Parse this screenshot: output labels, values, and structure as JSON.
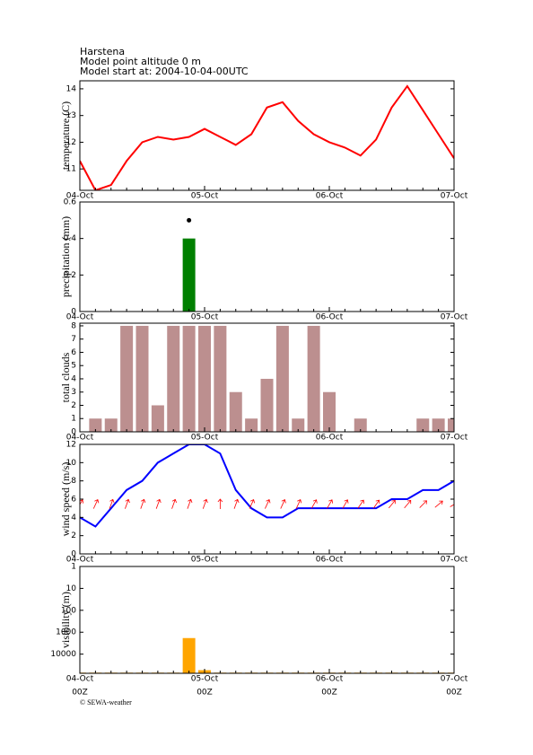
{
  "header": {
    "station": "Harstena",
    "altitude": "Model point altitude  0 m",
    "model_start": "Model start at: 2004-10-04-00UTC"
  },
  "footer": "© SEWA-weather",
  "chart_data": [
    {
      "type": "line",
      "y_label": "temperature (C)",
      "categories": [
        "04-Oct",
        null,
        null,
        null,
        null,
        null,
        null,
        null,
        "05-Oct",
        null,
        null,
        null,
        null,
        null,
        null,
        null,
        "06-Oct",
        null,
        null,
        null,
        null,
        null,
        null,
        null,
        "07-Oct"
      ],
      "values": [
        11.3,
        10.2,
        10.4,
        11.3,
        12.0,
        12.2,
        12.1,
        12.2,
        12.5,
        12.2,
        11.9,
        12.3,
        13.3,
        13.5,
        12.8,
        12.3,
        12.0,
        11.8,
        11.5,
        12.1,
        13.3,
        14.1,
        13.2,
        12.3,
        11.4
      ],
      "color": "#ff0000",
      "ylim": [
        10.2,
        14.3
      ],
      "yticks": [
        11,
        12,
        13,
        14
      ]
    },
    {
      "type": "bar",
      "y_label": "precipitation (mm)",
      "categories": [
        "04-Oct",
        null,
        null,
        null,
        null,
        null,
        null,
        null,
        "05-Oct",
        null,
        null,
        null,
        null,
        null,
        null,
        null,
        "06-Oct",
        null,
        null,
        null,
        null,
        null,
        null,
        null,
        "07-Oct"
      ],
      "values": [
        0,
        0,
        0,
        0,
        0,
        0,
        0,
        0.4,
        0,
        0,
        0,
        0,
        0,
        0,
        0,
        0,
        0,
        0,
        0,
        0,
        0,
        0,
        0,
        0,
        0
      ],
      "marker_values": [
        null,
        null,
        null,
        null,
        null,
        null,
        null,
        0.5,
        null,
        null,
        null,
        null,
        null,
        null,
        null,
        null,
        null,
        null,
        null,
        null,
        null,
        null,
        null,
        null,
        null
      ],
      "color": "#008000",
      "marker_color": "#000000",
      "ylim": [
        0,
        0.6
      ],
      "yticks": [
        0,
        0.2,
        0.4,
        0.6
      ]
    },
    {
      "type": "bar",
      "y_label": "total clouds",
      "categories": [
        "04-Oct",
        null,
        null,
        null,
        null,
        null,
        null,
        null,
        "05-Oct",
        null,
        null,
        null,
        null,
        null,
        null,
        null,
        "06-Oct",
        null,
        null,
        null,
        null,
        null,
        null,
        null,
        "07-Oct"
      ],
      "values": [
        0,
        1,
        1,
        8,
        8,
        2,
        8,
        8,
        8,
        8,
        3,
        1,
        4,
        8,
        1,
        8,
        3,
        0,
        1,
        0,
        0,
        0,
        1,
        1,
        1
      ],
      "color": "#bc8f8f",
      "ylim": [
        0,
        8.2
      ],
      "yticks": [
        0,
        1,
        2,
        3,
        4,
        5,
        6,
        7,
        8
      ]
    },
    {
      "type": "line",
      "y_label": "wind speed (m/s)",
      "categories": [
        "04-Oct",
        null,
        null,
        null,
        null,
        null,
        null,
        null,
        "05-Oct",
        null,
        null,
        null,
        null,
        null,
        null,
        null,
        "06-Oct",
        null,
        null,
        null,
        null,
        null,
        null,
        null,
        "07-Oct"
      ],
      "values": [
        4,
        3,
        5,
        7,
        8,
        10,
        11,
        12,
        12,
        11,
        7,
        5,
        4,
        4,
        5,
        5,
        5,
        5,
        5,
        5,
        6,
        6,
        7,
        7,
        8
      ],
      "arrow_directions": [
        30,
        25,
        20,
        20,
        20,
        20,
        20,
        20,
        20,
        0,
        20,
        25,
        25,
        25,
        25,
        30,
        30,
        30,
        35,
        35,
        40,
        40,
        45,
        50,
        60
      ],
      "color": "#0000ff",
      "arrow_color": "#ff0000",
      "ylim": [
        0,
        12
      ],
      "yticks": [
        0,
        2,
        4,
        6,
        8,
        10,
        12
      ]
    },
    {
      "type": "bar",
      "y_label": "visibility (m)",
      "categories": [
        "04-Oct",
        null,
        null,
        null,
        null,
        null,
        null,
        null,
        "05-Oct",
        null,
        null,
        null,
        null,
        null,
        null,
        null,
        "06-Oct",
        null,
        null,
        null,
        null,
        null,
        null,
        null,
        "07-Oct"
      ],
      "x_sublabels": [
        "00Z",
        null,
        null,
        null,
        null,
        null,
        null,
        null,
        "00Z",
        null,
        null,
        null,
        null,
        null,
        null,
        null,
        "00Z",
        null,
        null,
        null,
        null,
        null,
        null,
        null,
        "00Z"
      ],
      "values": [
        70000,
        70000,
        70000,
        70000,
        70000,
        70000,
        70000,
        1850,
        54000,
        70000,
        70000,
        70000,
        70000,
        70000,
        70000,
        70000,
        70000,
        70000,
        70000,
        70000,
        70000,
        70000,
        70000,
        70000,
        70000
      ],
      "color": "#ffa500",
      "log": true,
      "inverted": true,
      "ylim": [
        1,
        75000
      ],
      "yticks": [
        1,
        10,
        100,
        1000,
        10000
      ]
    }
  ]
}
